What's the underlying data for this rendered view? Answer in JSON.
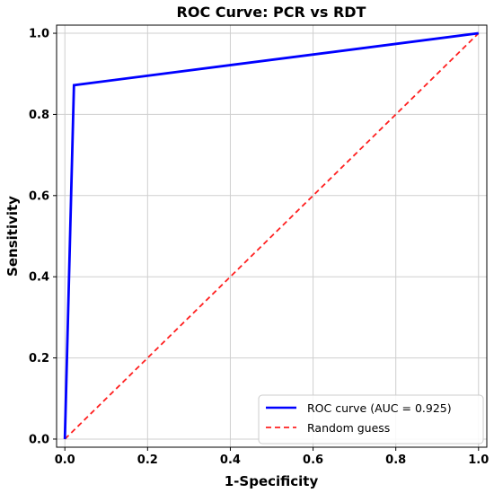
{
  "chart_data": {
    "type": "line",
    "title": "ROC Curve: PCR vs RDT",
    "xlabel": "1-Specificity",
    "ylabel": "Sensitivity",
    "xlim": [
      -0.02,
      1.02
    ],
    "ylim": [
      -0.02,
      1.02
    ],
    "xticks": [
      0.0,
      0.2,
      0.4,
      0.6,
      0.8,
      1.0
    ],
    "yticks": [
      0.0,
      0.2,
      0.4,
      0.6,
      0.8,
      1.0
    ],
    "xtick_labels": [
      "0.0",
      "0.2",
      "0.4",
      "0.6",
      "0.8",
      "1.0"
    ],
    "ytick_labels": [
      "0.0",
      "0.2",
      "0.4",
      "0.6",
      "0.8",
      "1.0"
    ],
    "grid": true,
    "legend_position": "lower-right",
    "series": [
      {
        "name": "ROC curve (AUC = 0.925)",
        "style": "solid",
        "color": "#0000ff",
        "x": [
          0.0,
          0.022,
          1.0
        ],
        "y": [
          0.0,
          0.872,
          1.0
        ]
      },
      {
        "name": "Random guess",
        "style": "dashed",
        "color": "#ff2020",
        "x": [
          0.0,
          1.0
        ],
        "y": [
          0.0,
          1.0
        ]
      }
    ]
  }
}
